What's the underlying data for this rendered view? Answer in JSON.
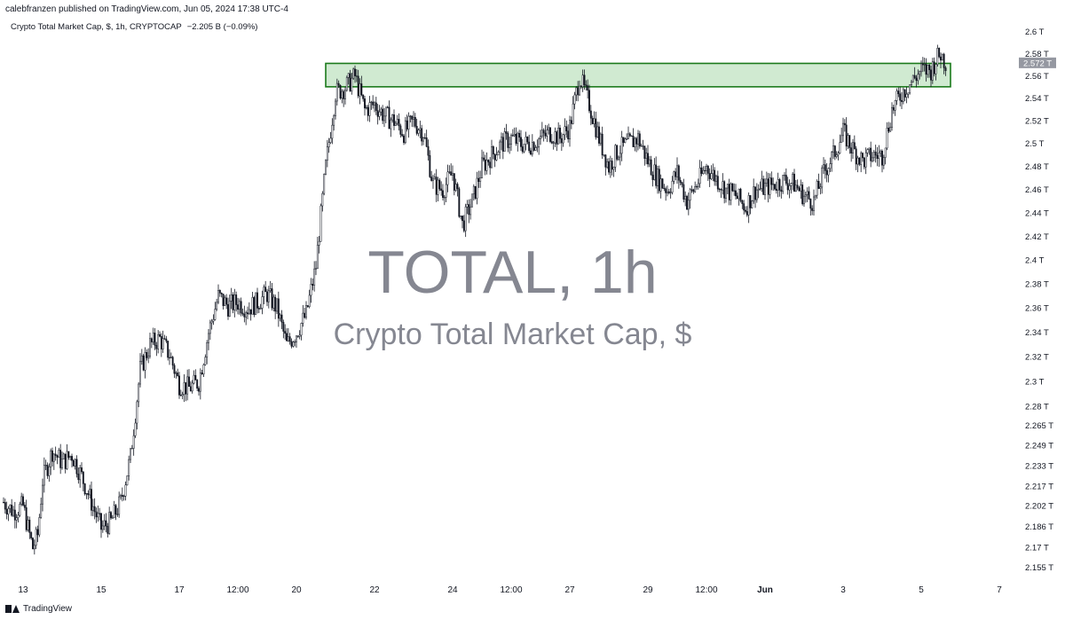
{
  "header": {
    "published": "calebfranzen published on TradingView.com, Jun 05, 2024 17:38 UTC-4",
    "symbol": "Crypto Total Market Cap, $, 1h, CRYPTOCAP",
    "change": "−2.205 B (−0.09%)"
  },
  "watermark": {
    "main": "TOTAL, 1h",
    "sub": "Crypto Total Market Cap, $"
  },
  "footer": {
    "brand": "TradingView"
  },
  "colors": {
    "candle": "#131722",
    "zone_fill": "#c8e6c9",
    "zone_border": "#1b7a1b",
    "price_label_bg": "#9598a1"
  },
  "chart_data": {
    "type": "line",
    "title": "TOTAL, 1h",
    "subtitle": "Crypto Total Market Cap, $",
    "xlabel": "",
    "ylabel": "",
    "y_unit": "T",
    "x_range": [
      "2024-05-12T12:00",
      "2024-06-07T12:00"
    ],
    "x_ticks": [
      {
        "label": "13",
        "date": "2024-05-13T00:00"
      },
      {
        "label": "15",
        "date": "2024-05-15T00:00"
      },
      {
        "label": "17",
        "date": "2024-05-17T00:00"
      },
      {
        "label": "12:00",
        "date": "2024-05-18T12:00"
      },
      {
        "label": "20",
        "date": "2024-05-20T00:00"
      },
      {
        "label": "22",
        "date": "2024-05-22T00:00"
      },
      {
        "label": "24",
        "date": "2024-05-24T00:00"
      },
      {
        "label": "12:00",
        "date": "2024-05-25T12:00"
      },
      {
        "label": "27",
        "date": "2024-05-27T00:00"
      },
      {
        "label": "29",
        "date": "2024-05-29T00:00"
      },
      {
        "label": "12:00",
        "date": "2024-05-30T12:00"
      },
      {
        "label": "Jun",
        "date": "2024-06-01T00:00",
        "bold": true
      },
      {
        "label": "3",
        "date": "2024-06-03T00:00"
      },
      {
        "label": "5",
        "date": "2024-06-05T00:00"
      },
      {
        "label": "7",
        "date": "2024-06-07T00:00"
      }
    ],
    "y_ticks": [
      "2.6 T",
      "2.58 T",
      "2.56 T",
      "2.54 T",
      "2.52 T",
      "2.5 T",
      "2.48 T",
      "2.46 T",
      "2.44 T",
      "2.42 T",
      "2.4 T",
      "2.38 T",
      "2.36 T",
      "2.34 T",
      "2.32 T",
      "2.3 T",
      "2.28 T",
      "2.265 T",
      "2.249 T",
      "2.233 T",
      "2.217 T",
      "2.202 T",
      "2.186 T",
      "2.17 T",
      "2.155 T"
    ],
    "y_tick_values": [
      2.6,
      2.58,
      2.56,
      2.54,
      2.52,
      2.5,
      2.48,
      2.46,
      2.44,
      2.42,
      2.4,
      2.38,
      2.36,
      2.34,
      2.32,
      2.3,
      2.28,
      2.265,
      2.249,
      2.233,
      2.217,
      2.202,
      2.186,
      2.17,
      2.155
    ],
    "log_scale": true,
    "ylim": [
      2.15,
      2.61
    ],
    "grid": false,
    "last_price": {
      "value": 2.572,
      "label": "2.572 T"
    },
    "resistance_zone": {
      "x_start": "2024-05-20T18:00",
      "x_end": "2024-06-05T18:00",
      "y_low": 2.5505,
      "y_high": 2.5715
    },
    "series": [
      {
        "name": "TOTAL",
        "points": [
          [
            "2024-05-12T12:00",
            2.205
          ],
          [
            "2024-05-12T18:00",
            2.198
          ],
          [
            "2024-05-13T00:00",
            2.202
          ],
          [
            "2024-05-13T03:00",
            2.185
          ],
          [
            "2024-05-13T06:00",
            2.17
          ],
          [
            "2024-05-13T09:00",
            2.18
          ],
          [
            "2024-05-13T12:00",
            2.222
          ],
          [
            "2024-05-13T18:00",
            2.245
          ],
          [
            "2024-05-14T00:00",
            2.236
          ],
          [
            "2024-05-14T06:00",
            2.242
          ],
          [
            "2024-05-14T12:00",
            2.225
          ],
          [
            "2024-05-14T18:00",
            2.205
          ],
          [
            "2024-05-15T00:00",
            2.185
          ],
          [
            "2024-05-15T06:00",
            2.19
          ],
          [
            "2024-05-15T12:00",
            2.205
          ],
          [
            "2024-05-15T18:00",
            2.24
          ],
          [
            "2024-05-16T00:00",
            2.31
          ],
          [
            "2024-05-16T06:00",
            2.33
          ],
          [
            "2024-05-16T12:00",
            2.335
          ],
          [
            "2024-05-16T18:00",
            2.322
          ],
          [
            "2024-05-17T00:00",
            2.298
          ],
          [
            "2024-05-17T06:00",
            2.295
          ],
          [
            "2024-05-17T12:00",
            2.3
          ],
          [
            "2024-05-17T18:00",
            2.34
          ],
          [
            "2024-05-18T00:00",
            2.37
          ],
          [
            "2024-05-18T06:00",
            2.362
          ],
          [
            "2024-05-18T12:00",
            2.365
          ],
          [
            "2024-05-18T18:00",
            2.36
          ],
          [
            "2024-05-19T00:00",
            2.365
          ],
          [
            "2024-05-19T06:00",
            2.372
          ],
          [
            "2024-05-19T12:00",
            2.36
          ],
          [
            "2024-05-19T18:00",
            2.33
          ],
          [
            "2024-05-20T00:00",
            2.34
          ],
          [
            "2024-05-20T06:00",
            2.355
          ],
          [
            "2024-05-20T12:00",
            2.395
          ],
          [
            "2024-05-20T18:00",
            2.48
          ],
          [
            "2024-05-21T00:00",
            2.545
          ],
          [
            "2024-05-21T06:00",
            2.55
          ],
          [
            "2024-05-21T12:00",
            2.56
          ],
          [
            "2024-05-21T18:00",
            2.53
          ],
          [
            "2024-05-22T00:00",
            2.535
          ],
          [
            "2024-05-22T06:00",
            2.525
          ],
          [
            "2024-05-22T12:00",
            2.52
          ],
          [
            "2024-05-22T18:00",
            2.51
          ],
          [
            "2024-05-23T00:00",
            2.52
          ],
          [
            "2024-05-23T06:00",
            2.51
          ],
          [
            "2024-05-23T12:00",
            2.465
          ],
          [
            "2024-05-23T18:00",
            2.46
          ],
          [
            "2024-05-24T00:00",
            2.475
          ],
          [
            "2024-05-24T06:00",
            2.43
          ],
          [
            "2024-05-24T12:00",
            2.45
          ],
          [
            "2024-05-24T18:00",
            2.48
          ],
          [
            "2024-05-25T00:00",
            2.49
          ],
          [
            "2024-05-25T06:00",
            2.5
          ],
          [
            "2024-05-25T12:00",
            2.505
          ],
          [
            "2024-05-25T18:00",
            2.5
          ],
          [
            "2024-05-26T00:00",
            2.5
          ],
          [
            "2024-05-26T06:00",
            2.505
          ],
          [
            "2024-05-26T12:00",
            2.51
          ],
          [
            "2024-05-26T18:00",
            2.505
          ],
          [
            "2024-05-27T00:00",
            2.515
          ],
          [
            "2024-05-27T06:00",
            2.56
          ],
          [
            "2024-05-27T12:00",
            2.535
          ],
          [
            "2024-05-27T18:00",
            2.505
          ],
          [
            "2024-05-28T00:00",
            2.48
          ],
          [
            "2024-05-28T06:00",
            2.495
          ],
          [
            "2024-05-28T12:00",
            2.5
          ],
          [
            "2024-05-28T18:00",
            2.505
          ],
          [
            "2024-05-29T00:00",
            2.485
          ],
          [
            "2024-05-29T06:00",
            2.47
          ],
          [
            "2024-05-29T12:00",
            2.46
          ],
          [
            "2024-05-29T18:00",
            2.475
          ],
          [
            "2024-05-30T00:00",
            2.45
          ],
          [
            "2024-05-30T06:00",
            2.465
          ],
          [
            "2024-05-30T12:00",
            2.48
          ],
          [
            "2024-05-30T18:00",
            2.47
          ],
          [
            "2024-05-31T00:00",
            2.46
          ],
          [
            "2024-05-31T06:00",
            2.455
          ],
          [
            "2024-05-31T12:00",
            2.445
          ],
          [
            "2024-05-31T18:00",
            2.46
          ],
          [
            "2024-06-01T00:00",
            2.462
          ],
          [
            "2024-06-01T06:00",
            2.465
          ],
          [
            "2024-06-01T12:00",
            2.468
          ],
          [
            "2024-06-01T18:00",
            2.465
          ],
          [
            "2024-06-02T00:00",
            2.455
          ],
          [
            "2024-06-02T06:00",
            2.45
          ],
          [
            "2024-06-02T12:00",
            2.475
          ],
          [
            "2024-06-02T18:00",
            2.49
          ],
          [
            "2024-06-03T00:00",
            2.51
          ],
          [
            "2024-06-03T06:00",
            2.495
          ],
          [
            "2024-06-03T12:00",
            2.485
          ],
          [
            "2024-06-03T18:00",
            2.49
          ],
          [
            "2024-06-04T00:00",
            2.49
          ],
          [
            "2024-06-04T06:00",
            2.53
          ],
          [
            "2024-06-04T12:00",
            2.545
          ],
          [
            "2024-06-04T18:00",
            2.555
          ],
          [
            "2024-06-05T00:00",
            2.565
          ],
          [
            "2024-06-05T06:00",
            2.565
          ],
          [
            "2024-06-05T09:00",
            2.575
          ],
          [
            "2024-06-05T12:00",
            2.58
          ],
          [
            "2024-06-05T15:00",
            2.572
          ]
        ]
      }
    ]
  }
}
